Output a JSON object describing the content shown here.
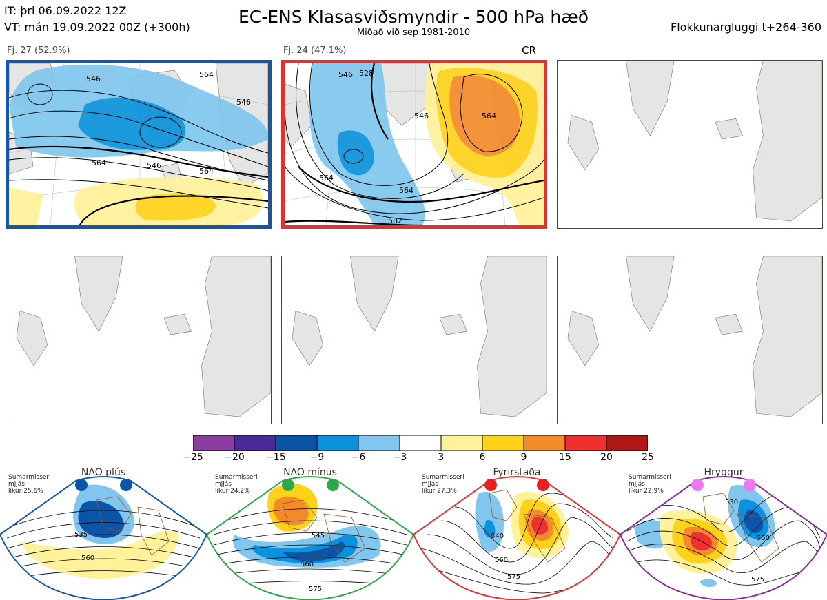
{
  "header": {
    "it_line": "IT: þri 06.09.2022 12Z",
    "vt_line": "VT: mán 19.09.2022 00Z  (+300h)",
    "title": "EC-ENS Klasasviðsmyndir - 500 hPa hæð",
    "subtitle": "Miðað við sep 1981-2010",
    "window": "Flokkunargluggi t+264-360"
  },
  "panels": [
    {
      "label": "Fj. 27",
      "percent": "(52.9%)",
      "frame_color": "#1457a8",
      "contours": [
        "546",
        "546",
        "546",
        "564",
        "564",
        "564"
      ]
    },
    {
      "label": "Fj. 24",
      "percent": "(47.1%)",
      "frame_color": "#e63030",
      "tag": "CR",
      "contours": [
        "546",
        "528",
        "546",
        "564",
        "564",
        "564",
        "582"
      ]
    }
  ],
  "colorbar": {
    "ticks": [
      "−25",
      "−20",
      "−15",
      "−9",
      "−6",
      "−3",
      "3",
      "6",
      "9",
      "15",
      "20",
      "25"
    ],
    "colors": [
      "#8a3fa0",
      "#4a2a9a",
      "#0a55a8",
      "#0a92dc",
      "#80c6ee",
      "#ffffff",
      "#fff29a",
      "#ffd21a",
      "#f58a2a",
      "#ee3030",
      "#b01818"
    ]
  },
  "regimes": [
    {
      "title": "NAO plús",
      "season": "Sumarmisseri",
      "size": "mjjás",
      "prob": "líkur 25,6%",
      "color": "#1457a8",
      "dot_color": "#0a55a8",
      "contours": [
        "535",
        "560"
      ]
    },
    {
      "title": "NAO mínus",
      "season": "Sumarmisseri",
      "size": "mjjás",
      "prob": "líkur 24,2%",
      "color": "#2aa84a",
      "dot_color": "#2aa84a",
      "contours": [
        "545",
        "560",
        "575"
      ]
    },
    {
      "title": "Fyrirstaða",
      "season": "Sumarmisseri",
      "size": "mjjás",
      "prob": "líkur 27,3%",
      "color": "#e63030",
      "dot_color": "#e82020",
      "contours": [
        "540",
        "560",
        "575"
      ]
    },
    {
      "title": "Hryggur",
      "season": "Sumarmisseri",
      "size": "mjjás",
      "prob": "líkur 22,9%",
      "color": "#8a2a9a",
      "dot_color": "#ee78ee",
      "contours": [
        "530",
        "550",
        "575"
      ]
    }
  ]
}
